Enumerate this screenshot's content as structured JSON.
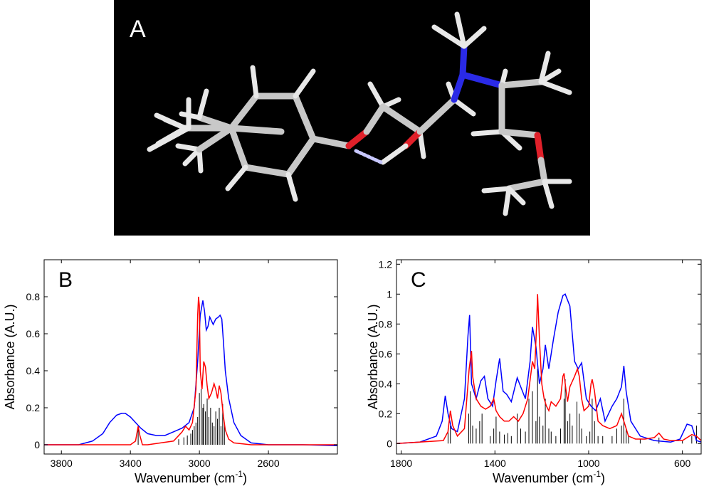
{
  "panelA": {
    "label": "A",
    "bond_colors": {
      "carbon": "#c8c8c8",
      "hydrogen": "#e8e8e8",
      "oxygen": "#e0202a",
      "nitrogen": "#2a2ae6",
      "hbond": "#c8c8ff"
    },
    "background": "#000000"
  },
  "chart_data": [
    {
      "panel_label": "B",
      "type": "line",
      "xlabel_main": "Wavenumber (cm",
      "xlabel_sup": "-1",
      "xlabel_end": ")",
      "ylabel": "Absorbance (A.U.)",
      "xlim": [
        3900,
        2200
      ],
      "ylim": [
        -0.05,
        1.0
      ],
      "xticks": [
        3800,
        3400,
        3000,
        2600
      ],
      "yticks": [
        0,
        0.2,
        0.4,
        0.6,
        0.8
      ],
      "ytick_labels": [
        "0",
        "0.2",
        "0.4",
        "0.6",
        "0.8"
      ],
      "series": [
        {
          "color": "#0000ff",
          "x": [
            3900,
            3700,
            3620,
            3560,
            3520,
            3480,
            3450,
            3430,
            3400,
            3370,
            3340,
            3300,
            3250,
            3200,
            3150,
            3100,
            3060,
            3030,
            3010,
            2995,
            2980,
            2970,
            2960,
            2950,
            2940,
            2930,
            2920,
            2905,
            2890,
            2880,
            2870,
            2860,
            2850,
            2830,
            2800,
            2760,
            2700,
            2600,
            2400,
            2200
          ],
          "y": [
            0.0,
            0.0,
            0.02,
            0.06,
            0.12,
            0.16,
            0.17,
            0.17,
            0.15,
            0.12,
            0.09,
            0.06,
            0.05,
            0.05,
            0.07,
            0.09,
            0.12,
            0.2,
            0.45,
            0.7,
            0.78,
            0.72,
            0.62,
            0.64,
            0.69,
            0.67,
            0.65,
            0.68,
            0.69,
            0.7,
            0.68,
            0.55,
            0.4,
            0.25,
            0.12,
            0.05,
            0.01,
            0.0,
            0.0,
            -0.005
          ]
        },
        {
          "color": "#ff0000",
          "x": [
            3900,
            3400,
            3370,
            3355,
            3345,
            3330,
            3300,
            3150,
            3100,
            3080,
            3060,
            3040,
            3020,
            3010,
            3005,
            3000,
            2995,
            2985,
            2975,
            2965,
            2955,
            2945,
            2930,
            2915,
            2905,
            2895,
            2885,
            2875,
            2860,
            2850,
            2830,
            2800,
            2700,
            2200
          ],
          "y": [
            0.0,
            0.0,
            0.02,
            0.1,
            0.05,
            0.0,
            0.0,
            0.02,
            0.07,
            0.1,
            0.08,
            0.12,
            0.3,
            0.7,
            0.8,
            0.75,
            0.4,
            0.3,
            0.45,
            0.42,
            0.32,
            0.25,
            0.28,
            0.33,
            0.3,
            0.25,
            0.32,
            0.28,
            0.15,
            0.08,
            0.03,
            0.01,
            0.0,
            0.0
          ]
        }
      ],
      "sticks": [
        [
          3355,
          0.09
        ],
        [
          3120,
          0.03
        ],
        [
          3090,
          0.04
        ],
        [
          3070,
          0.05
        ],
        [
          3050,
          0.06
        ],
        [
          3040,
          0.08
        ],
        [
          3030,
          0.1
        ],
        [
          3020,
          0.12
        ],
        [
          3010,
          0.15
        ],
        [
          3000,
          0.28
        ],
        [
          2990,
          0.3
        ],
        [
          2980,
          0.2
        ],
        [
          2975,
          0.22
        ],
        [
          2965,
          0.18
        ],
        [
          2955,
          0.25
        ],
        [
          2945,
          0.15
        ],
        [
          2935,
          0.2
        ],
        [
          2925,
          0.12
        ],
        [
          2915,
          0.1
        ],
        [
          2905,
          0.18
        ],
        [
          2895,
          0.14
        ],
        [
          2885,
          0.2
        ],
        [
          2875,
          0.1
        ],
        [
          2865,
          0.22
        ],
        [
          2855,
          0.12
        ]
      ]
    },
    {
      "panel_label": "C",
      "type": "line",
      "xlabel_main": "Wavenumber (cm",
      "xlabel_sup": "-1",
      "xlabel_end": ")",
      "ylabel": "Absorbance (A.U.)",
      "xlim": [
        1820,
        520
      ],
      "ylim": [
        -0.07,
        1.23
      ],
      "xticks": [
        1800,
        1400,
        1000,
        600
      ],
      "yticks": [
        0,
        0.2,
        0.4,
        0.6,
        0.8,
        1,
        1.2
      ],
      "ytick_labels": [
        "0",
        "0.2",
        "0.4",
        "0.6",
        "0.8",
        "1",
        "1.2"
      ],
      "series": [
        {
          "color": "#0000ff",
          "x": [
            1820,
            1720,
            1650,
            1625,
            1612,
            1600,
            1585,
            1560,
            1530,
            1515,
            1508,
            1500,
            1480,
            1460,
            1445,
            1430,
            1410,
            1395,
            1380,
            1365,
            1350,
            1330,
            1305,
            1290,
            1270,
            1250,
            1240,
            1225,
            1210,
            1195,
            1185,
            1170,
            1150,
            1130,
            1110,
            1100,
            1080,
            1060,
            1045,
            1030,
            1010,
            990,
            970,
            950,
            930,
            900,
            880,
            860,
            850,
            840,
            820,
            780,
            720,
            650,
            610,
            580,
            560,
            540,
            520
          ],
          "y": [
            0.0,
            0.01,
            0.05,
            0.15,
            0.32,
            0.2,
            0.1,
            0.08,
            0.3,
            0.72,
            0.86,
            0.4,
            0.3,
            0.42,
            0.45,
            0.3,
            0.25,
            0.42,
            0.57,
            0.35,
            0.33,
            0.28,
            0.44,
            0.38,
            0.3,
            0.55,
            0.78,
            0.65,
            0.4,
            0.5,
            0.66,
            0.5,
            0.7,
            0.88,
            0.99,
            1.0,
            0.92,
            0.55,
            0.5,
            0.54,
            0.3,
            0.25,
            0.22,
            0.3,
            0.15,
            0.25,
            0.3,
            0.38,
            0.52,
            0.35,
            0.15,
            0.05,
            0.02,
            0.01,
            0.03,
            0.13,
            0.12,
            0.02,
            0.01
          ]
        },
        {
          "color": "#ff0000",
          "x": [
            1820,
            1620,
            1600,
            1590,
            1580,
            1560,
            1530,
            1510,
            1500,
            1495,
            1480,
            1460,
            1440,
            1420,
            1405,
            1395,
            1380,
            1360,
            1340,
            1320,
            1300,
            1280,
            1260,
            1240,
            1230,
            1222,
            1218,
            1210,
            1200,
            1190,
            1180,
            1170,
            1160,
            1140,
            1120,
            1110,
            1105,
            1100,
            1090,
            1080,
            1060,
            1048,
            1040,
            1030,
            1020,
            1000,
            990,
            985,
            975,
            960,
            940,
            910,
            880,
            860,
            850,
            830,
            800,
            760,
            720,
            700,
            680,
            650,
            600,
            560,
            540,
            520
          ],
          "y": [
            0.0,
            0.02,
            0.08,
            0.22,
            0.12,
            0.05,
            0.1,
            0.5,
            0.62,
            0.45,
            0.3,
            0.25,
            0.23,
            0.25,
            0.3,
            0.22,
            0.18,
            0.15,
            0.15,
            0.18,
            0.15,
            0.2,
            0.3,
            0.55,
            0.5,
            0.8,
            1.0,
            0.7,
            0.4,
            0.3,
            0.25,
            0.22,
            0.28,
            0.25,
            0.3,
            0.45,
            0.47,
            0.4,
            0.28,
            0.38,
            0.45,
            0.5,
            0.45,
            0.3,
            0.22,
            0.25,
            0.4,
            0.43,
            0.35,
            0.15,
            0.12,
            0.1,
            0.12,
            0.2,
            0.15,
            0.05,
            0.03,
            0.03,
            0.04,
            0.07,
            0.03,
            0.02,
            0.02,
            0.06,
            0.05,
            0.02
          ]
        }
      ],
      "sticks": [
        [
          1600,
          0.1
        ],
        [
          1590,
          0.12
        ],
        [
          1512,
          0.2
        ],
        [
          1505,
          0.35
        ],
        [
          1495,
          0.12
        ],
        [
          1480,
          0.1
        ],
        [
          1465,
          0.15
        ],
        [
          1455,
          0.2
        ],
        [
          1420,
          0.05
        ],
        [
          1405,
          0.1
        ],
        [
          1395,
          0.18
        ],
        [
          1380,
          0.08
        ],
        [
          1360,
          0.06
        ],
        [
          1345,
          0.07
        ],
        [
          1330,
          0.05
        ],
        [
          1305,
          0.2
        ],
        [
          1290,
          0.1
        ],
        [
          1270,
          0.08
        ],
        [
          1255,
          0.3
        ],
        [
          1240,
          0.35
        ],
        [
          1225,
          0.15
        ],
        [
          1218,
          0.5
        ],
        [
          1210,
          0.18
        ],
        [
          1195,
          0.12
        ],
        [
          1185,
          0.3
        ],
        [
          1170,
          0.1
        ],
        [
          1160,
          0.08
        ],
        [
          1140,
          0.05
        ],
        [
          1120,
          0.1
        ],
        [
          1105,
          0.3
        ],
        [
          1100,
          0.43
        ],
        [
          1090,
          0.15
        ],
        [
          1080,
          0.2
        ],
        [
          1070,
          0.12
        ],
        [
          1050,
          0.28
        ],
        [
          1040,
          0.2
        ],
        [
          1030,
          0.1
        ],
        [
          1010,
          0.05
        ],
        [
          995,
          0.08
        ],
        [
          985,
          0.3
        ],
        [
          975,
          0.15
        ],
        [
          960,
          0.05
        ],
        [
          940,
          0.05
        ],
        [
          900,
          0.05
        ],
        [
          880,
          0.1
        ],
        [
          860,
          0.12
        ],
        [
          850,
          0.3
        ],
        [
          840,
          0.1
        ],
        [
          830,
          0.05
        ],
        [
          780,
          0.03
        ],
        [
          700,
          0.04
        ],
        [
          600,
          0.02
        ],
        [
          560,
          0.05
        ],
        [
          540,
          0.12
        ]
      ]
    }
  ]
}
